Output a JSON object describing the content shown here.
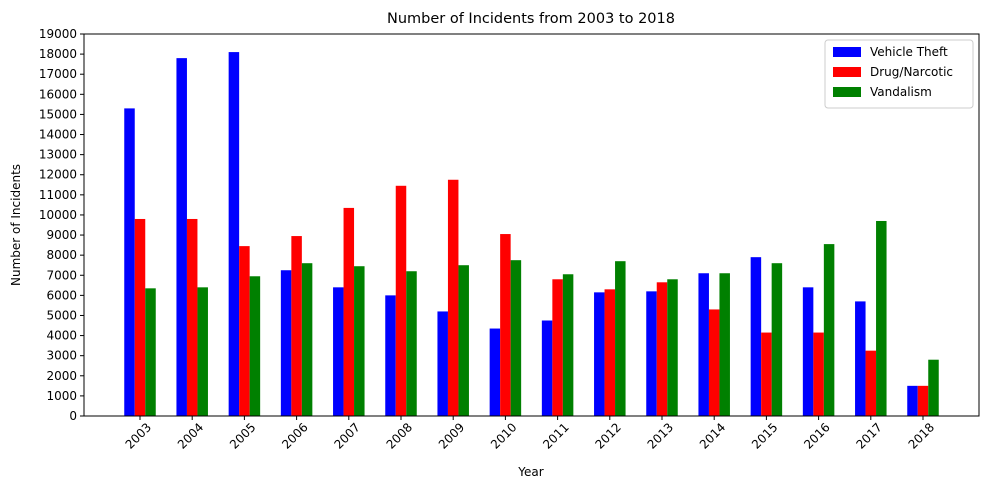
{
  "chart_data": {
    "type": "bar",
    "title": "Number of Incidents from 2003 to 2018",
    "xlabel": "Year",
    "ylabel": "Number of Incidents",
    "categories": [
      "2003",
      "2004",
      "2005",
      "2006",
      "2007",
      "2008",
      "2009",
      "2010",
      "2011",
      "2012",
      "2013",
      "2014",
      "2015",
      "2016",
      "2017",
      "2018"
    ],
    "series": [
      {
        "name": "Vehicle Theft",
        "color": "#0000ff",
        "values": [
          15300,
          17800,
          18100,
          7250,
          6400,
          6000,
          5200,
          4350,
          4750,
          6150,
          6200,
          7100,
          7900,
          6400,
          5700,
          1500
        ]
      },
      {
        "name": "Drug/Narcotic",
        "color": "#ff0000",
        "values": [
          9800,
          9800,
          8450,
          8950,
          10350,
          11450,
          11750,
          9050,
          6800,
          6300,
          6650,
          5300,
          4150,
          4150,
          3250,
          1500
        ]
      },
      {
        "name": "Vandalism",
        "color": "#008000",
        "values": [
          6350,
          6400,
          6950,
          7600,
          7450,
          7200,
          7500,
          7750,
          7050,
          7700,
          6800,
          7100,
          7600,
          8550,
          9700,
          2800
        ]
      }
    ],
    "ylim": [
      0,
      19000
    ],
    "yticks": [
      0,
      1000,
      2000,
      3000,
      4000,
      5000,
      6000,
      7000,
      8000,
      9000,
      10000,
      11000,
      12000,
      13000,
      14000,
      15000,
      16000,
      17000,
      18000,
      19000
    ],
    "legend_position": "top-right",
    "grid": false
  }
}
